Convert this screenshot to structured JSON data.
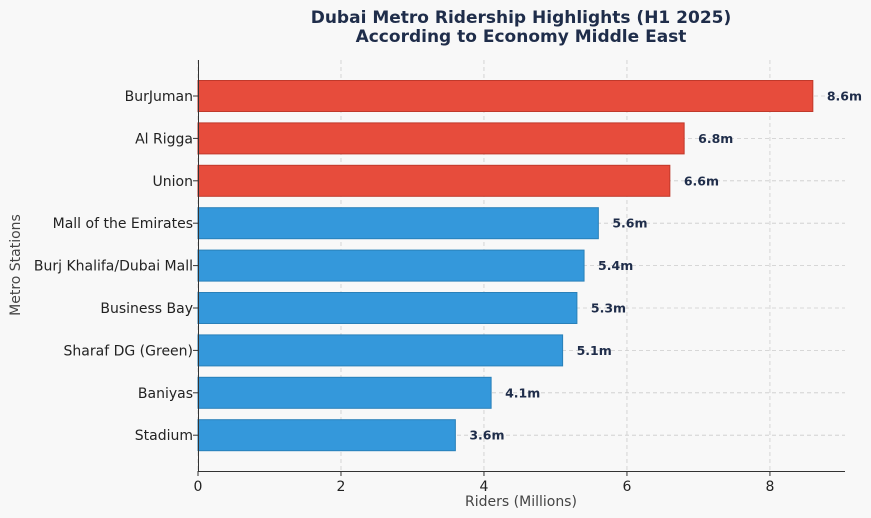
{
  "chart_data": {
    "type": "bar",
    "orientation": "horizontal",
    "title": "Dubai Metro Ridership Highlights (H1 2025)",
    "subtitle": "According to Economy Middle East",
    "xlabel": "Riders (Millions)",
    "ylabel": "Metro Stations",
    "xlim": [
      0,
      9.05
    ],
    "xticks": [
      0,
      2,
      4,
      6,
      8
    ],
    "grid": true,
    "categories": [
      "BurJuman",
      "Al Rigga",
      "Union",
      "Mall of the Emirates",
      "Burj Khalifa/Dubai Mall",
      "Business Bay",
      "Sharaf DG (Green)",
      "Baniyas",
      "Stadium"
    ],
    "values": [
      8.6,
      6.8,
      6.6,
      5.6,
      5.4,
      5.3,
      5.1,
      4.1,
      3.6
    ],
    "value_labels": [
      "8.6m",
      "6.8m",
      "6.6m",
      "5.6m",
      "5.4m",
      "5.3m",
      "5.1m",
      "4.1m",
      "3.6m"
    ],
    "bar_colors": [
      "#e74c3c",
      "#e74c3c",
      "#e74c3c",
      "#3498db",
      "#3498db",
      "#3498db",
      "#3498db",
      "#3498db",
      "#3498db"
    ],
    "bar_edge_colors": [
      "#c0392b",
      "#c0392b",
      "#c0392b",
      "#2980b9",
      "#2980b9",
      "#2980b9",
      "#2980b9",
      "#2980b9",
      "#2980b9"
    ]
  }
}
